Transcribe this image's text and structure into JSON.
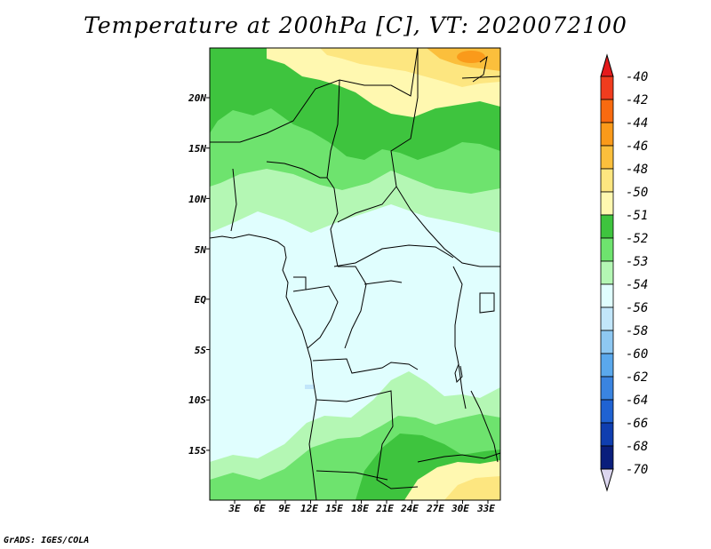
{
  "title": "Temperature at 200hPa [C], VT: 2020072100",
  "credit": "GrADS: IGES/COLA",
  "map": {
    "variable": "Temperature at 200hPa",
    "units": "C",
    "valid_time": "2020072100",
    "lat_ticks": [
      "20N",
      "15N",
      "10N",
      "5N",
      "EQ",
      "5S",
      "10S",
      "15S"
    ],
    "lon_ticks": [
      "3E",
      "6E",
      "9E",
      "12E",
      "15E",
      "18E",
      "21E",
      "24E",
      "27E",
      "30E",
      "33E"
    ]
  },
  "colorbar": {
    "levels": [
      "-40",
      "-42",
      "-44",
      "-46",
      "-48",
      "-50",
      "-51",
      "-52",
      "-53",
      "-54",
      "-56",
      "-58",
      "-60",
      "-62",
      "-64",
      "-66",
      "-68",
      "-70"
    ],
    "colors": [
      "#e41a1c",
      "#f03c1e",
      "#f86a10",
      "#fa9a1a",
      "#fbbf3c",
      "#fde680",
      "#fff8b0",
      "#3ec43e",
      "#6ee36e",
      "#b4f7b4",
      "#e0fefe",
      "#c2e6fa",
      "#8ec8f2",
      "#5aa8ec",
      "#3a84e0",
      "#1f62d2",
      "#0f3eb0",
      "#0a1e7c",
      "#dcd6ef"
    ]
  }
}
